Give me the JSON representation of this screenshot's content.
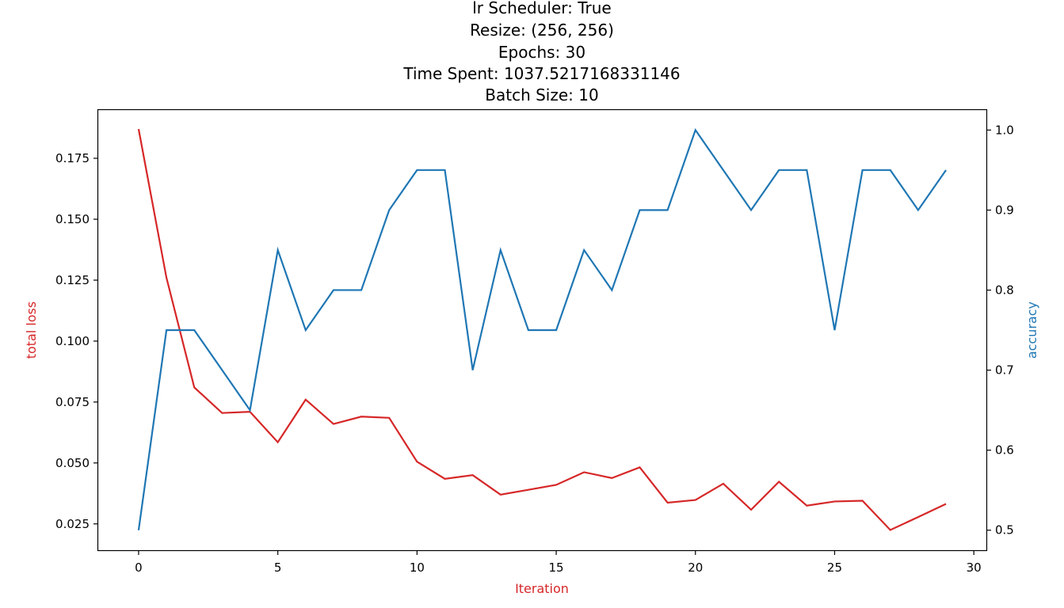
{
  "chart_data": {
    "type": "line",
    "title_lines": [
      "lr Scheduler: True",
      "Resize: (256, 256)",
      "Epochs: 30",
      "Time Spent: 1037.5217168331146",
      "Batch Size: 10"
    ],
    "xlabel": "Iteration",
    "ylabel": "total loss",
    "y2label": "accuracy",
    "xlim": [
      -1.45,
      30.45
    ],
    "ylim": [
      0.0142,
      0.1948
    ],
    "y2lim": [
      0.475,
      1.025
    ],
    "x_ticks": [
      0,
      5,
      10,
      15,
      20,
      25,
      30
    ],
    "y_ticks": [
      0.025,
      0.05,
      0.075,
      0.1,
      0.125,
      0.15,
      0.175
    ],
    "y_tick_labels": [
      "0.025",
      "0.050",
      "0.075",
      "0.100",
      "0.125",
      "0.150",
      "0.175"
    ],
    "y2_ticks": [
      0.5,
      0.6,
      0.7,
      0.8,
      0.9,
      1.0
    ],
    "y2_tick_labels": [
      "0.5",
      "0.6",
      "0.7",
      "0.8",
      "0.9",
      "1.0"
    ],
    "grid": false,
    "x": [
      0,
      1,
      2,
      3,
      4,
      5,
      6,
      7,
      8,
      9,
      10,
      11,
      12,
      13,
      14,
      15,
      16,
      17,
      18,
      19,
      20,
      21,
      22,
      23,
      24,
      25,
      26,
      27,
      28,
      29
    ],
    "series": [
      {
        "axis": "left",
        "color": "#d62728",
        "values": [
          0.187,
          0.126,
          0.081,
          0.0705,
          0.071,
          0.0585,
          0.076,
          0.066,
          0.069,
          0.0685,
          0.0505,
          0.0435,
          0.045,
          0.037,
          0.039,
          0.041,
          0.0462,
          0.0438,
          0.0482,
          0.0337,
          0.0348,
          0.0415,
          0.0308,
          0.0423,
          0.0325,
          0.0342,
          0.0345,
          0.0225,
          0.0278,
          0.0332
        ]
      },
      {
        "axis": "right",
        "color": "#1f77b4",
        "values": [
          0.5,
          0.75,
          0.75,
          0.7,
          0.65,
          0.85,
          0.75,
          0.8,
          0.8,
          0.9,
          0.95,
          0.95,
          0.7,
          0.85,
          0.75,
          0.75,
          0.85,
          0.8,
          0.9,
          0.9,
          1.0,
          0.95,
          0.9,
          0.95,
          0.95,
          0.75,
          0.95,
          0.95,
          0.9,
          0.95
        ]
      }
    ],
    "colors": {
      "loss": "#d62728",
      "accuracy": "#1f77b4",
      "axis": "#000000"
    }
  }
}
